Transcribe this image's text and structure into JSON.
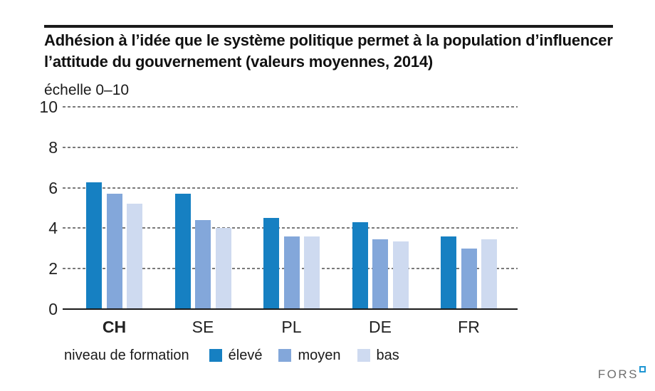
{
  "branding": {
    "logo_text": "FORS"
  },
  "chart_data": {
    "type": "bar",
    "title": "Adhésion à l’idée que le système politique permet à la population d’influencer l’attitude du gouvernement (valeurs moyennes, 2014)",
    "unit_label": "échelle 0–10",
    "categories": [
      "CH",
      "SE",
      "PL",
      "DE",
      "FR"
    ],
    "emphasized_category": "CH",
    "series": [
      {
        "name": "élevé",
        "color": "#1680C2",
        "values": [
          6.25,
          5.7,
          4.5,
          4.3,
          3.6
        ]
      },
      {
        "name": "moyen",
        "color": "#83A7DA",
        "values": [
          5.7,
          4.4,
          3.6,
          3.45,
          3.0
        ]
      },
      {
        "name": "bas",
        "color": "#CEDAF0",
        "values": [
          5.2,
          4.0,
          3.6,
          3.35,
          3.45
        ]
      }
    ],
    "ylim": [
      0,
      10
    ],
    "yticks": [
      0,
      2,
      4,
      6,
      8,
      10
    ],
    "grid": "horizontal-dashed",
    "grid_color": "#7a7a7a",
    "legend_title": "niveau de formation",
    "legend_position": "bottom"
  }
}
